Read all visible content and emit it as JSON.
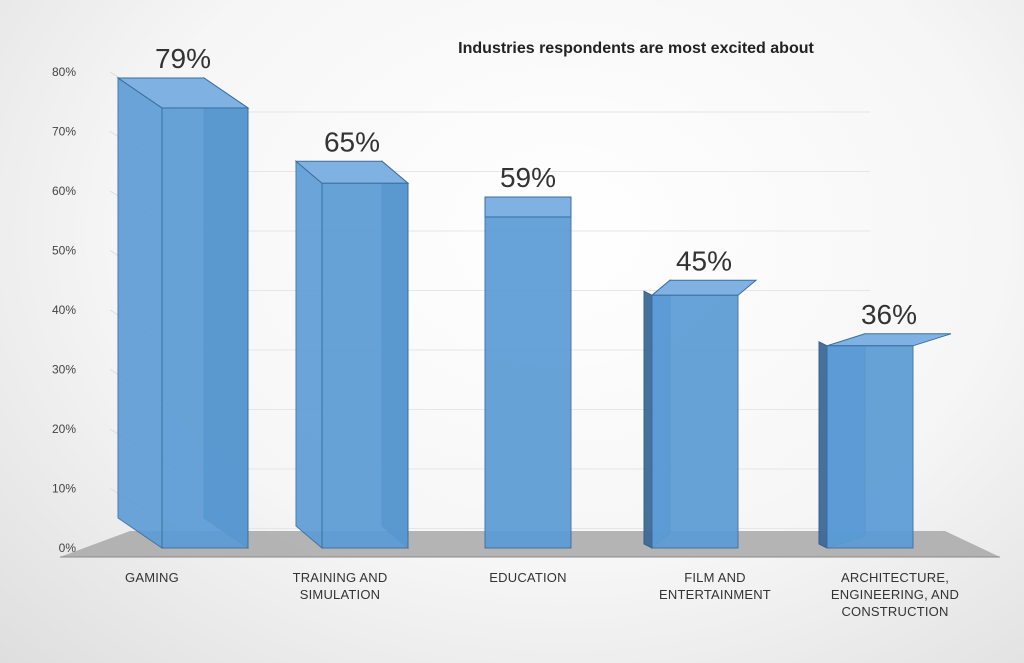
{
  "chart_data": {
    "type": "bar",
    "title": "Industries respondents are most excited about",
    "categories": [
      [
        "GAMING"
      ],
      [
        "TRAINING AND",
        "SIMULATION"
      ],
      [
        "EDUCATION"
      ],
      [
        "FILM AND",
        "ENTERTAINMENT"
      ],
      [
        "ARCHITECTURE,",
        "ENGINEERING, AND",
        "CONSTRUCTION"
      ]
    ],
    "values": [
      79,
      65,
      59,
      45,
      36
    ],
    "data_labels": [
      "79%",
      "65%",
      "59%",
      "45%",
      "36%"
    ],
    "y_ticks": [
      "0%",
      "10%",
      "20%",
      "30%",
      "40%",
      "50%",
      "60%",
      "70%",
      "80%"
    ],
    "ylim": [
      0,
      80
    ],
    "xlabel": "",
    "ylabel": "",
    "style": "3d-column",
    "grid": true,
    "colors": {
      "bar_front": "#5b9bd5",
      "bar_side": "#3d6a95",
      "bar_top": "#7fb2e2",
      "floor": "#a8a8a8"
    }
  }
}
